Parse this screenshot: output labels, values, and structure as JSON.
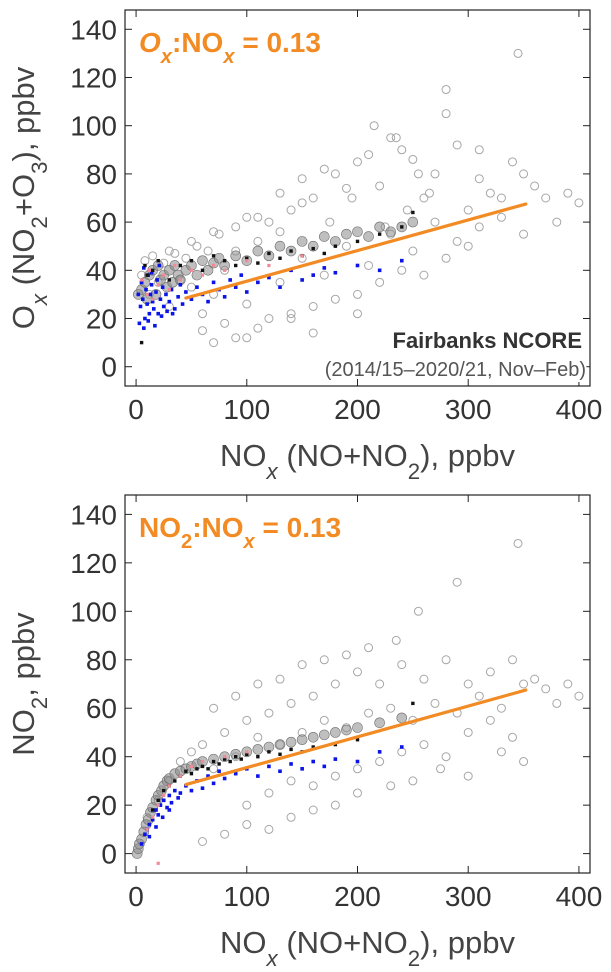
{
  "chart_data": [
    {
      "type": "scatter",
      "title": "",
      "xlabel": "NOx (NO+NO2), ppbv",
      "ylabel": "Ox (NO2+O3), ppbv",
      "xlim": [
        -10,
        410
      ],
      "ylim": [
        -8,
        148
      ],
      "x_ticks": [
        0,
        100,
        200,
        300,
        400
      ],
      "y_ticks": [
        0,
        20,
        40,
        60,
        80,
        100,
        120,
        140
      ],
      "grid": false,
      "annotation_ratio": {
        "lead": "O",
        "lead_sub": "x",
        "mid": ":NO",
        "mid_sub": "x",
        "tail": " = 0.13"
      },
      "annotation_site": "Fairbanks NCORE",
      "annotation_period": "(2014/15–2020/21, Nov–Feb)",
      "colors": {
        "open_points": "#a6a6a6",
        "dense_gray": "#8a8a8a",
        "blue": "#0a14e6",
        "black": "#111111",
        "pink": "#f08a96",
        "fit": "#f28b24",
        "annotation": "#f28b24"
      },
      "fit_line": {
        "x": [
          45,
          352
        ],
        "y": [
          28.5,
          67.5
        ]
      },
      "series": [
        {
          "style": "open-circle",
          "x": [
            5,
            8,
            12,
            15,
            20,
            25,
            30,
            35,
            40,
            45,
            50,
            55,
            60,
            65,
            70,
            75,
            80,
            90,
            100,
            110,
            120,
            130,
            140,
            150,
            160,
            170,
            180,
            190,
            200,
            210,
            220,
            230,
            240,
            250,
            260,
            270,
            280,
            290,
            300,
            310,
            320,
            330,
            340,
            350,
            360,
            370,
            380,
            390,
            400,
            60,
            80,
            100,
            120,
            140,
            160,
            180,
            200,
            220,
            240,
            260,
            280,
            300,
            100,
            130,
            150,
            170,
            190,
            210,
            230,
            250,
            270,
            290,
            310,
            330,
            350,
            70,
            90,
            110,
            140,
            160,
            200,
            215,
            235,
            255,
            280,
            310,
            345,
            30,
            50,
            70,
            90,
            110,
            130,
            150,
            175,
            195,
            225,
            245,
            265
          ],
          "y": [
            38,
            44,
            30,
            46,
            35,
            43,
            25,
            47,
            36,
            45,
            33,
            50,
            22,
            48,
            30,
            55,
            40,
            58,
            26,
            52,
            60,
            35,
            65,
            45,
            70,
            38,
            80,
            50,
            85,
            42,
            75,
            55,
            90,
            48,
            70,
            60,
            105,
            52,
            65,
            58,
            72,
            62,
            85,
            55,
            75,
            70,
            60,
            72,
            68,
            15,
            18,
            12,
            20,
            22,
            25,
            28,
            30,
            35,
            40,
            38,
            45,
            50,
            62,
            72,
            78,
            82,
            74,
            88,
            95,
            86,
            80,
            92,
            78,
            70,
            80,
            10,
            12,
            16,
            20,
            14,
            22,
            100,
            95,
            80,
            115,
            90,
            130,
            48,
            52,
            56,
            48,
            62,
            56,
            68,
            60,
            70,
            58,
            65,
            72
          ]
        },
        {
          "style": "dense-gray",
          "x": [
            2,
            5,
            8,
            10,
            12,
            15,
            18,
            20,
            22,
            25,
            28,
            30,
            33,
            35,
            38,
            40,
            45,
            50,
            55,
            60,
            65,
            70,
            75,
            80,
            90,
            100,
            110,
            120,
            130,
            140,
            150,
            160,
            170,
            180,
            190,
            200,
            210,
            220,
            230,
            240,
            250
          ],
          "y": [
            30,
            32,
            35,
            28,
            38,
            40,
            30,
            42,
            36,
            38,
            33,
            40,
            35,
            42,
            38,
            36,
            40,
            42,
            38,
            44,
            40,
            43,
            45,
            42,
            46,
            44,
            48,
            46,
            50,
            48,
            52,
            50,
            54,
            52,
            55,
            56,
            54,
            58,
            56,
            58,
            60
          ]
        },
        {
          "style": "blue",
          "x": [
            2,
            4,
            5,
            6,
            8,
            9,
            10,
            11,
            12,
            13,
            14,
            15,
            16,
            18,
            19,
            20,
            22,
            24,
            25,
            27,
            30,
            32,
            35,
            38,
            40,
            42,
            45,
            50,
            55,
            60,
            65,
            70,
            75,
            80,
            85,
            90,
            95,
            100,
            110,
            120,
            130,
            140,
            150,
            160,
            170,
            180,
            200,
            220,
            240,
            3,
            7,
            11,
            17,
            23,
            28,
            33,
            7,
            14,
            21
          ],
          "y": [
            30,
            25,
            35,
            28,
            20,
            32,
            26,
            38,
            22,
            30,
            34,
            27,
            24,
            31,
            36,
            22,
            28,
            33,
            25,
            30,
            27,
            32,
            24,
            29,
            34,
            26,
            31,
            28,
            33,
            30,
            27,
            35,
            32,
            29,
            36,
            33,
            38,
            31,
            35,
            37,
            33,
            40,
            36,
            38,
            41,
            39,
            42,
            40,
            44,
            18,
            16,
            19,
            17,
            21,
            23,
            22,
            41,
            39,
            42
          ]
        },
        {
          "style": "black",
          "x": [
            5,
            8,
            10,
            15,
            20,
            30,
            40,
            50,
            60,
            70,
            80,
            90,
            100,
            110,
            120,
            130,
            140,
            150,
            160,
            170,
            180,
            200,
            220,
            240,
            250
          ],
          "y": [
            10,
            42,
            38,
            40,
            44,
            36,
            42,
            44,
            40,
            46,
            44,
            42,
            45,
            43,
            47,
            45,
            48,
            46,
            49,
            47,
            50,
            52,
            55,
            58,
            64
          ]
        },
        {
          "style": "pink",
          "x": [
            5,
            10,
            12,
            15,
            20,
            25,
            30,
            35,
            40,
            50,
            60,
            70,
            80,
            100,
            120,
            150
          ],
          "y": [
            36,
            30,
            40,
            28,
            34,
            38,
            32,
            42,
            36,
            40,
            38,
            42,
            40,
            44,
            42,
            46
          ]
        }
      ]
    },
    {
      "type": "scatter",
      "title": "",
      "xlabel": "NOx (NO+NO2), ppbv",
      "ylabel": "NO2, ppbv",
      "xlim": [
        -10,
        410
      ],
      "ylim": [
        -8,
        148
      ],
      "x_ticks": [
        0,
        100,
        200,
        300,
        400
      ],
      "y_ticks": [
        0,
        20,
        40,
        60,
        80,
        100,
        120,
        140
      ],
      "grid": false,
      "annotation_ratio": {
        "lead": "NO",
        "lead_sub": "2",
        "mid": ":NO",
        "mid_sub": "x",
        "tail": " = 0.13"
      },
      "colors": {
        "open_points": "#a6a6a6",
        "dense_gray": "#8a8a8a",
        "blue": "#0a14e6",
        "black": "#111111",
        "pink": "#f08a96",
        "fit": "#f28b24",
        "annotation": "#f28b24"
      },
      "fit_line": {
        "x": [
          45,
          352
        ],
        "y": [
          28.5,
          67.5
        ]
      },
      "series": [
        {
          "style": "open-circle",
          "x": [
            10,
            20,
            30,
            40,
            50,
            60,
            70,
            80,
            90,
            100,
            110,
            120,
            130,
            140,
            150,
            160,
            170,
            180,
            190,
            200,
            210,
            220,
            230,
            240,
            250,
            260,
            270,
            280,
            290,
            300,
            310,
            320,
            330,
            340,
            350,
            360,
            370,
            380,
            390,
            400,
            100,
            120,
            140,
            160,
            180,
            200,
            220,
            240,
            260,
            280,
            300,
            320,
            340,
            60,
            80,
            100,
            120,
            140,
            160,
            180,
            200,
            230,
            250,
            275,
            300,
            330,
            350,
            70,
            90,
            110,
            130,
            150,
            170,
            190,
            210,
            235,
            255,
            290,
            345
          ],
          "y": [
            15,
            22,
            30,
            38,
            42,
            45,
            35,
            50,
            40,
            55,
            48,
            58,
            45,
            62,
            50,
            65,
            55,
            70,
            52,
            75,
            58,
            70,
            60,
            78,
            55,
            72,
            62,
            80,
            58,
            70,
            65,
            75,
            60,
            80,
            70,
            72,
            68,
            62,
            70,
            65,
            20,
            25,
            30,
            28,
            32,
            35,
            38,
            42,
            45,
            40,
            50,
            55,
            48,
            5,
            8,
            12,
            10,
            15,
            18,
            20,
            25,
            28,
            30,
            35,
            32,
            42,
            38,
            60,
            65,
            70,
            72,
            78,
            80,
            82,
            85,
            88,
            100,
            112,
            128
          ]
        },
        {
          "style": "dense-gray",
          "x": [
            1,
            2,
            3,
            5,
            7,
            9,
            11,
            13,
            15,
            18,
            20,
            23,
            25,
            28,
            30,
            35,
            40,
            45,
            50,
            55,
            60,
            70,
            80,
            90,
            100,
            110,
            120,
            130,
            140,
            150,
            160,
            170,
            180,
            190,
            200,
            220,
            240
          ],
          "y": [
            0,
            2,
            4,
            6,
            9,
            12,
            14,
            17,
            19,
            22,
            24,
            26,
            28,
            30,
            31,
            33,
            34,
            35,
            36,
            37,
            38,
            39,
            40,
            41,
            42,
            43,
            44,
            45,
            46,
            47,
            48,
            49,
            50,
            51,
            52,
            54,
            56
          ]
        },
        {
          "style": "blue",
          "x": [
            5,
            8,
            10,
            12,
            15,
            18,
            20,
            22,
            25,
            28,
            30,
            32,
            35,
            38,
            40,
            45,
            50,
            55,
            60,
            65,
            70,
            75,
            80,
            90,
            100,
            110,
            120,
            130,
            140,
            150,
            160,
            170,
            180,
            200,
            220,
            240,
            12,
            18,
            24,
            30
          ],
          "y": [
            4,
            8,
            10,
            12,
            14,
            18,
            16,
            20,
            22,
            19,
            24,
            21,
            26,
            23,
            25,
            28,
            26,
            30,
            27,
            32,
            29,
            34,
            31,
            33,
            35,
            32,
            36,
            34,
            37,
            35,
            38,
            36,
            39,
            38,
            42,
            44,
            7,
            11,
            15,
            18
          ]
        },
        {
          "style": "black",
          "x": [
            15,
            20,
            25,
            30,
            35,
            40,
            45,
            50,
            55,
            60,
            65,
            70,
            75,
            80,
            85,
            90,
            95,
            100,
            110,
            120,
            130,
            140,
            150,
            160,
            180,
            200,
            250
          ],
          "y": [
            18,
            22,
            26,
            28,
            30,
            32,
            34,
            33,
            35,
            36,
            35,
            38,
            37,
            39,
            38,
            40,
            39,
            41,
            40,
            42,
            41,
            43,
            42,
            44,
            45,
            47,
            62
          ]
        },
        {
          "style": "pink",
          "x": [
            10,
            15,
            20,
            25,
            30,
            40,
            50,
            60,
            80,
            100,
            20
          ],
          "y": [
            10,
            15,
            20,
            24,
            28,
            32,
            36,
            38,
            40,
            42,
            -4
          ]
        }
      ]
    }
  ]
}
